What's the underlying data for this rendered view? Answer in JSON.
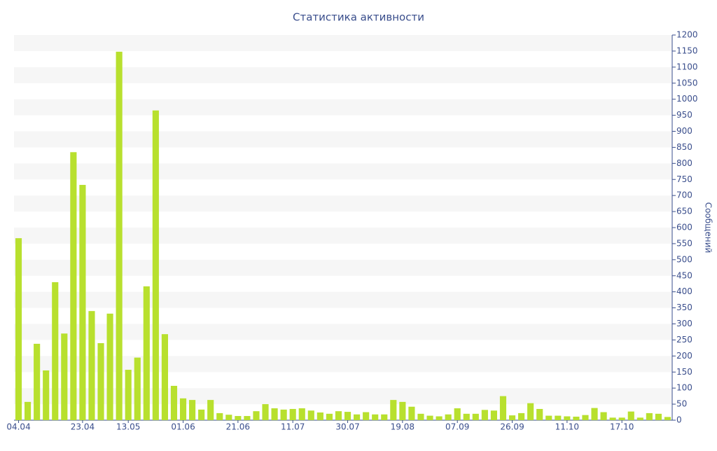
{
  "chart_data": {
    "type": "bar",
    "title": "Статистика активности",
    "y_label": "Сообщений",
    "categories": [
      "04.04",
      null,
      null,
      null,
      null,
      null,
      null,
      "23.04",
      null,
      null,
      null,
      null,
      "13.05",
      null,
      null,
      null,
      null,
      null,
      "01.06",
      null,
      null,
      null,
      null,
      null,
      "21.06",
      null,
      null,
      null,
      null,
      null,
      "11.07",
      null,
      null,
      null,
      null,
      null,
      "30.07",
      null,
      null,
      null,
      null,
      null,
      "19.08",
      null,
      null,
      null,
      null,
      null,
      "07.09",
      null,
      null,
      null,
      null,
      null,
      "26.09",
      null,
      null,
      null,
      null,
      null,
      "11.10",
      null,
      null,
      null,
      null,
      null,
      "17.10",
      null,
      null,
      null,
      null,
      null
    ],
    "values": [
      567,
      57,
      238,
      155,
      430,
      270,
      835,
      733,
      340,
      240,
      332,
      1148,
      157,
      195,
      417,
      965,
      268,
      107,
      68,
      63,
      33,
      63,
      22,
      17,
      13,
      13,
      28,
      50,
      37,
      33,
      35,
      37,
      30,
      24,
      20,
      28,
      26,
      18,
      25,
      18,
      18,
      63,
      57,
      42,
      20,
      14,
      12,
      18,
      37,
      20,
      20,
      32,
      30,
      75,
      15,
      22,
      53,
      35,
      14,
      14,
      12,
      11,
      16,
      38,
      25,
      8,
      8,
      27,
      8,
      22,
      20,
      10
    ],
    "color": "#b8e02e",
    "ylim": [
      0,
      1200
    ],
    "yticks": [
      0,
      50,
      100,
      150,
      200,
      250,
      300,
      350,
      400,
      450,
      500,
      550,
      600,
      650,
      700,
      750,
      800,
      850,
      900,
      950,
      1000,
      1050,
      1100,
      1150,
      1200
    ],
    "grid": true,
    "y_axis_side": "right"
  }
}
